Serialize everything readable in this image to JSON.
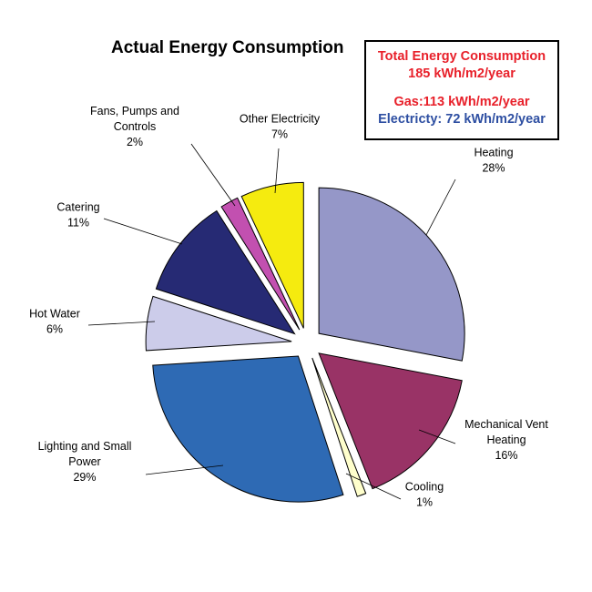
{
  "chart_data": {
    "type": "pie",
    "title": "Actual Energy Consumption",
    "slices": [
      {
        "label": "Heating",
        "value": 28,
        "value_label": "28%",
        "color": "#9597c8"
      },
      {
        "label": "Mechanical Vent Heating",
        "value": 16,
        "value_label": "16%",
        "color": "#993366"
      },
      {
        "label": "Cooling",
        "value": 1,
        "value_label": "1%",
        "color": "#ffffcc"
      },
      {
        "label": "Lighting and Small Power",
        "value": 29,
        "value_label": "29%",
        "color": "#2e6ab4"
      },
      {
        "label": "Hot Water",
        "value": 6,
        "value_label": "6%",
        "color": "#ccccea"
      },
      {
        "label": "Catering",
        "value": 11,
        "value_label": "11%",
        "color": "#262a74"
      },
      {
        "label": "Fans, Pumps and Controls",
        "value": 2,
        "value_label": "2%",
        "color": "#c250b0"
      },
      {
        "label": "Other Electricity",
        "value": 7,
        "value_label": "7%",
        "color": "#f5eb0f"
      }
    ],
    "exploded": true
  },
  "summary": {
    "total_label": "Total Energy Consumption",
    "total_value": "185 kWh/m2/year",
    "gas": "Gas:113 kWh/m2/year",
    "electricity": "Electricty: 72 kWh/m2/year",
    "total_color": "#e8202a",
    "gas_color": "#e8202a",
    "electricity_color": "#2e4fa2"
  }
}
